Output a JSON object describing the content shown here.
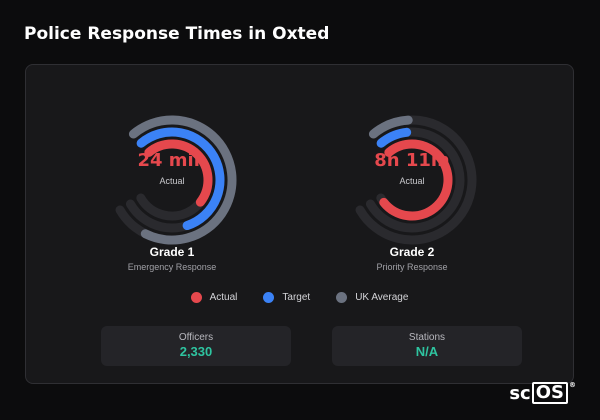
{
  "title": "Police Response Times in Oxted",
  "gauges": [
    {
      "value_text": "24 min",
      "sub": "Actual",
      "name": "Grade 1",
      "description": "Emergency Response",
      "actual_fraction": 0.6,
      "target_fraction": 0.72,
      "uk_fraction": 0.88
    },
    {
      "value_text": "8h 11m",
      "sub": "Actual",
      "name": "Grade 2",
      "description": "Priority Response",
      "actual_fraction": 0.97,
      "target_fraction": 0.12,
      "uk_fraction": 0.13
    }
  ],
  "legend": [
    {
      "label": "Actual",
      "color": "#e5484d"
    },
    {
      "label": "Target",
      "color": "#3b82f6"
    },
    {
      "label": "UK Average",
      "color": "#6b7280"
    }
  ],
  "stats": [
    {
      "label": "Officers",
      "value": "2,330"
    },
    {
      "label": "Stations",
      "value": "N/A"
    }
  ],
  "colors": {
    "track": "#2a2a2e",
    "actual": "#e5484d",
    "target": "#3b82f6",
    "uk": "#6b7280"
  },
  "watermark": {
    "prefix": "sc",
    "boxed": "OS",
    "mark": "®"
  }
}
